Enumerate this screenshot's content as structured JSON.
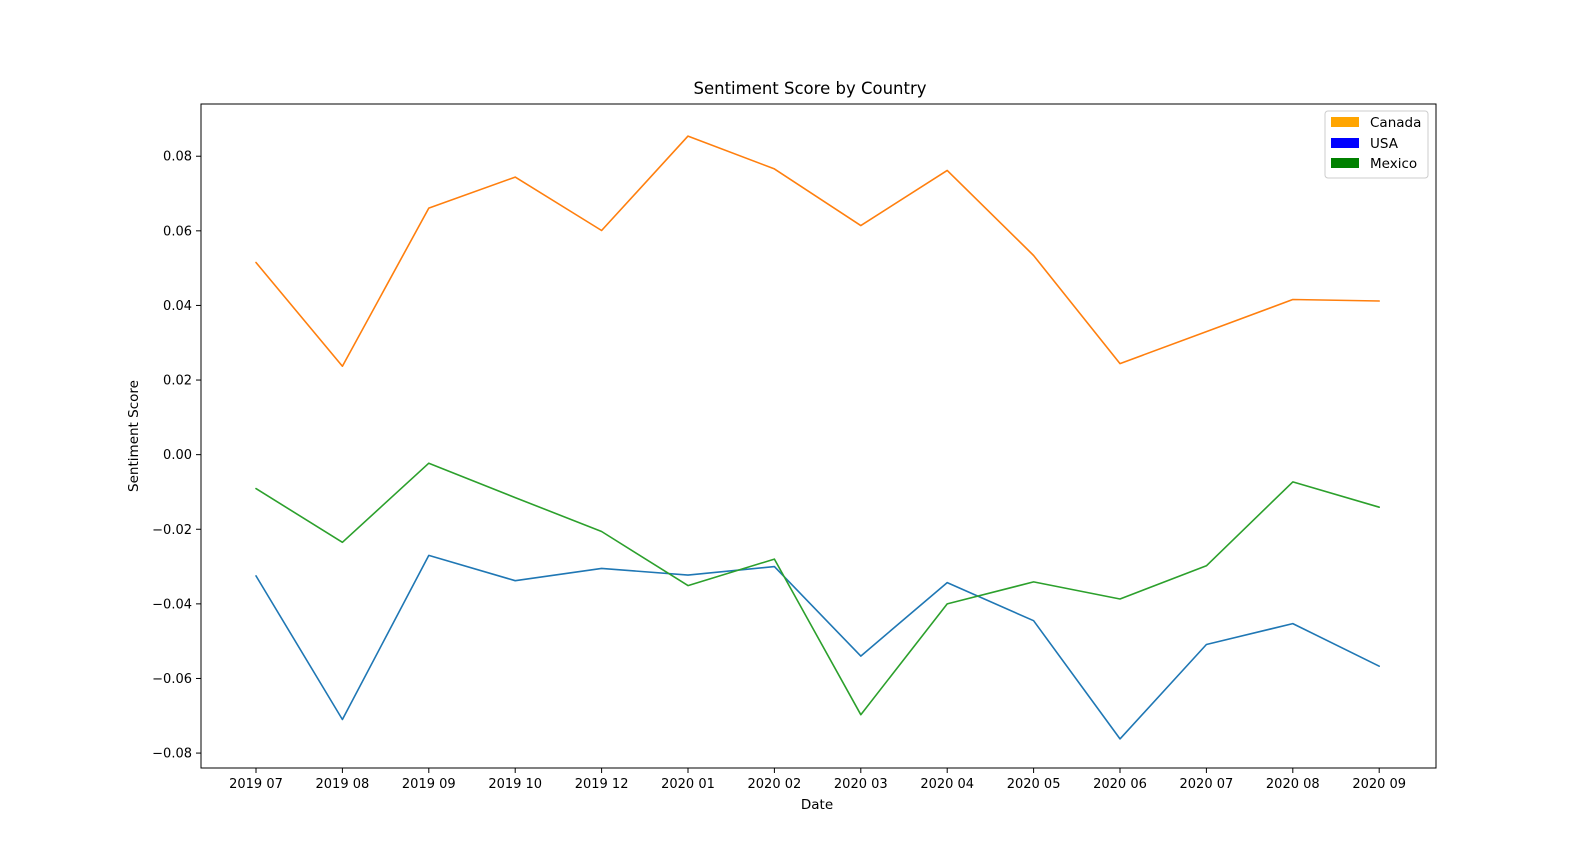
{
  "chart_data": {
    "type": "line",
    "title": "Sentiment Score by Country",
    "xlabel": "Date",
    "ylabel": "Sentiment Score",
    "categories": [
      "2019 07",
      "2019 08",
      "2019 09",
      "2019 10",
      "2019 12",
      "2020 01",
      "2020 02",
      "2020 03",
      "2020 04",
      "2020 05",
      "2020 06",
      "2020 07",
      "2020 08",
      "2020 09"
    ],
    "ylim": [
      -0.084,
      0.094
    ],
    "yticks": [
      -0.08,
      -0.06,
      -0.04,
      -0.02,
      0.0,
      0.02,
      0.04,
      0.06,
      0.08
    ],
    "ytick_labels": [
      "−0.08",
      "−0.06",
      "−0.04",
      "−0.02",
      "0.00",
      "0.02",
      "0.04",
      "0.06",
      "0.08"
    ],
    "grid": false,
    "legend_position": "top-right",
    "series": [
      {
        "color": "#ff7f0e",
        "values": [
          0.0515,
          0.0237,
          0.0661,
          0.0744,
          0.0601,
          0.0854,
          0.0766,
          0.0614,
          0.0762,
          0.0534,
          0.0244,
          0.033,
          0.0416,
          0.0412
        ]
      },
      {
        "color": "#1f77b4",
        "values": [
          -0.0325,
          -0.071,
          -0.027,
          -0.0338,
          -0.0305,
          -0.0323,
          -0.03,
          -0.054,
          -0.0343,
          -0.0445,
          -0.0762,
          -0.0509,
          -0.0453,
          -0.0567
        ]
      },
      {
        "color": "#2ca02c",
        "values": [
          -0.0091,
          -0.0235,
          -0.0023,
          -0.0115,
          -0.0206,
          -0.0351,
          -0.028,
          -0.0697,
          -0.04,
          -0.0341,
          -0.0387,
          -0.0298,
          -0.0073,
          -0.0141
        ]
      }
    ],
    "legend": [
      {
        "label": "Canada",
        "color": "#ffa500"
      },
      {
        "label": "USA",
        "color": "#0000ff"
      },
      {
        "label": "Mexico",
        "color": "#008000"
      }
    ]
  }
}
